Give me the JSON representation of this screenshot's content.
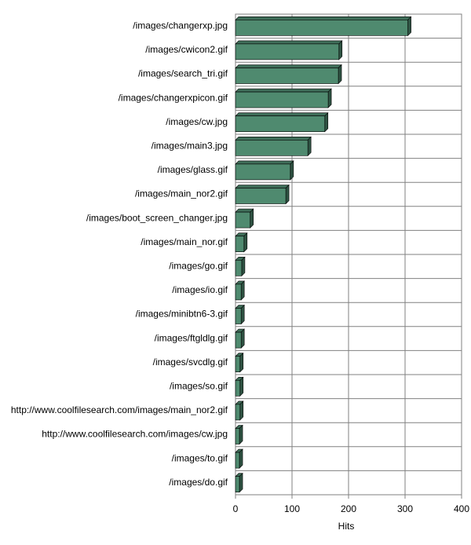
{
  "chart_data": {
    "type": "bar",
    "orientation": "horizontal",
    "xlabel": "Hits",
    "categories": [
      "/images/changerxp.jpg",
      "/images/cwicon2.gif",
      "/images/search_tri.gif",
      "/images/changerxpicon.gif",
      "/images/cw.jpg",
      "/images/main3.jpg",
      "/images/glass.gif",
      "/images/main_nor2.gif",
      "/images/boot_screen_changer.jpg",
      "/images/main_nor.gif",
      "/images/go.gif",
      "/images/io.gif",
      "/images/minibtn6-3.gif",
      "/images/ftgldlg.gif",
      "/images/svcdlg.gif",
      "/images/so.gif",
      "http://www.coolfilesearch.com/images/main_nor2.gif",
      "http://www.coolfilesearch.com/images/cw.jpg",
      "/images/to.gif",
      "/images/do.gif"
    ],
    "values": [
      305,
      183,
      182,
      164,
      158,
      128,
      97,
      89,
      26,
      15,
      11,
      10,
      10,
      10,
      8,
      8,
      8,
      7,
      7,
      7
    ],
    "color": "#4f8a6f",
    "xlim": [
      0,
      400
    ],
    "xticks": [
      0,
      100,
      200,
      300,
      400
    ],
    "grid": true
  }
}
